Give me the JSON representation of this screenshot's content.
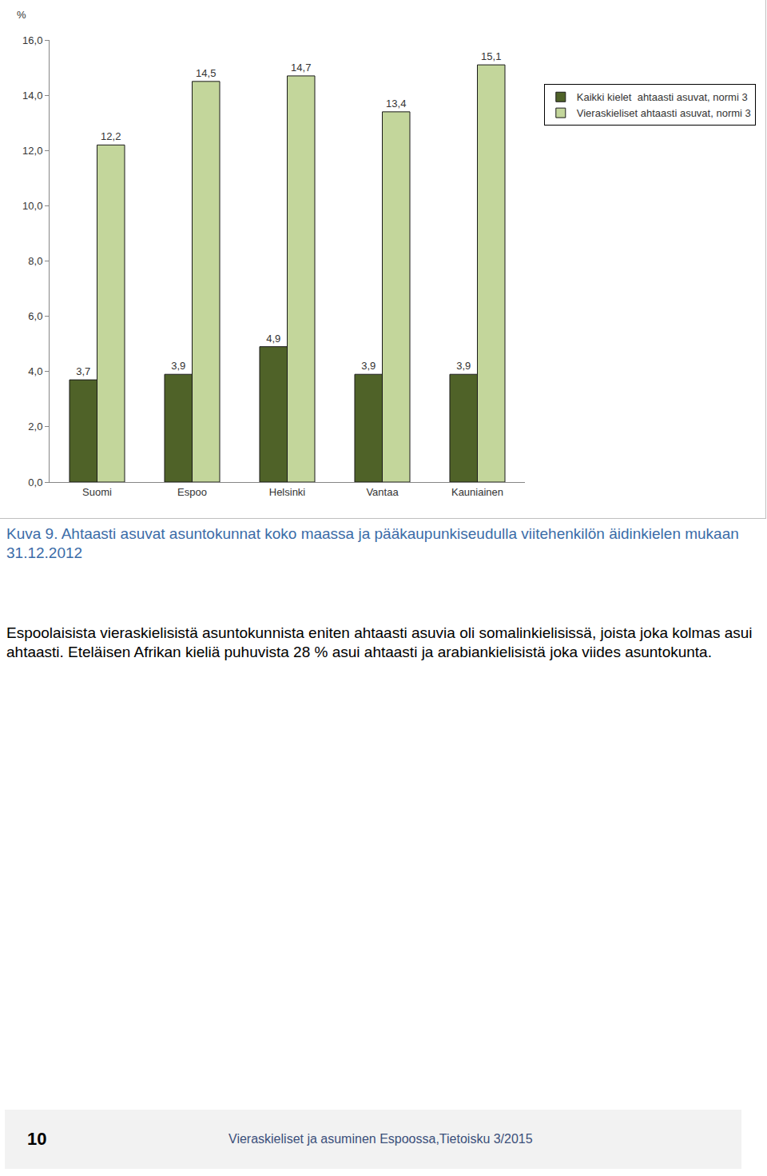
{
  "chart_data": {
    "type": "bar",
    "ylabel": "%",
    "categories": [
      "Suomi",
      "Espoo",
      "Helsinki",
      "Vantaa",
      "Kauniainen"
    ],
    "series": [
      {
        "name": "Kaikki kielet  ahtaasti asuvat, normi 3",
        "color": "#4f6228",
        "values": [
          3.7,
          3.9,
          4.9,
          3.9,
          3.9
        ],
        "value_labels": [
          "3,7",
          "3,9",
          "4,9",
          "3,9",
          "3,9"
        ]
      },
      {
        "name": "Vieraskieliset ahtaasti asuvat, normi 3",
        "color": "#c3d69b",
        "values": [
          12.2,
          14.5,
          14.7,
          13.4,
          15.1
        ],
        "value_labels": [
          "12,2",
          "14,5",
          "14,7",
          "13,4",
          "15,1"
        ]
      }
    ],
    "ylim": [
      0,
      16
    ],
    "yticks": [
      {
        "value": 0,
        "label": "0,0"
      },
      {
        "value": 2,
        "label": "2,0"
      },
      {
        "value": 4,
        "label": "4,0"
      },
      {
        "value": 6,
        "label": "6,0"
      },
      {
        "value": 8,
        "label": "8,0"
      },
      {
        "value": 10,
        "label": "10,0"
      },
      {
        "value": 12,
        "label": "12,0"
      },
      {
        "value": 14,
        "label": "14,0"
      },
      {
        "value": 16,
        "label": "16,0"
      }
    ],
    "grid": false,
    "legend": "right",
    "data_labels": true
  },
  "caption": "Kuva 9. Ahtaasti asuvat asuntokunnat koko maassa ja pääkaupunkiseudulla viitehenkilön äidinkielen mukaan 31.12.2012",
  "paragraph": "Espoolaisista vieraskielisistä asuntokunnista eniten ahtaasti asuvia oli somalinkielisissä, joista joka kolmas asui ahtaasti. Eteläisen Afrikan kieliä puhuvista 28 % asui ahtaasti ja arabiankielisistä joka viides asuntokunta.",
  "footer": {
    "page": "10",
    "text": "Vieraskieliset ja asuminen Espoossa,Tietoisku 3/2015"
  }
}
